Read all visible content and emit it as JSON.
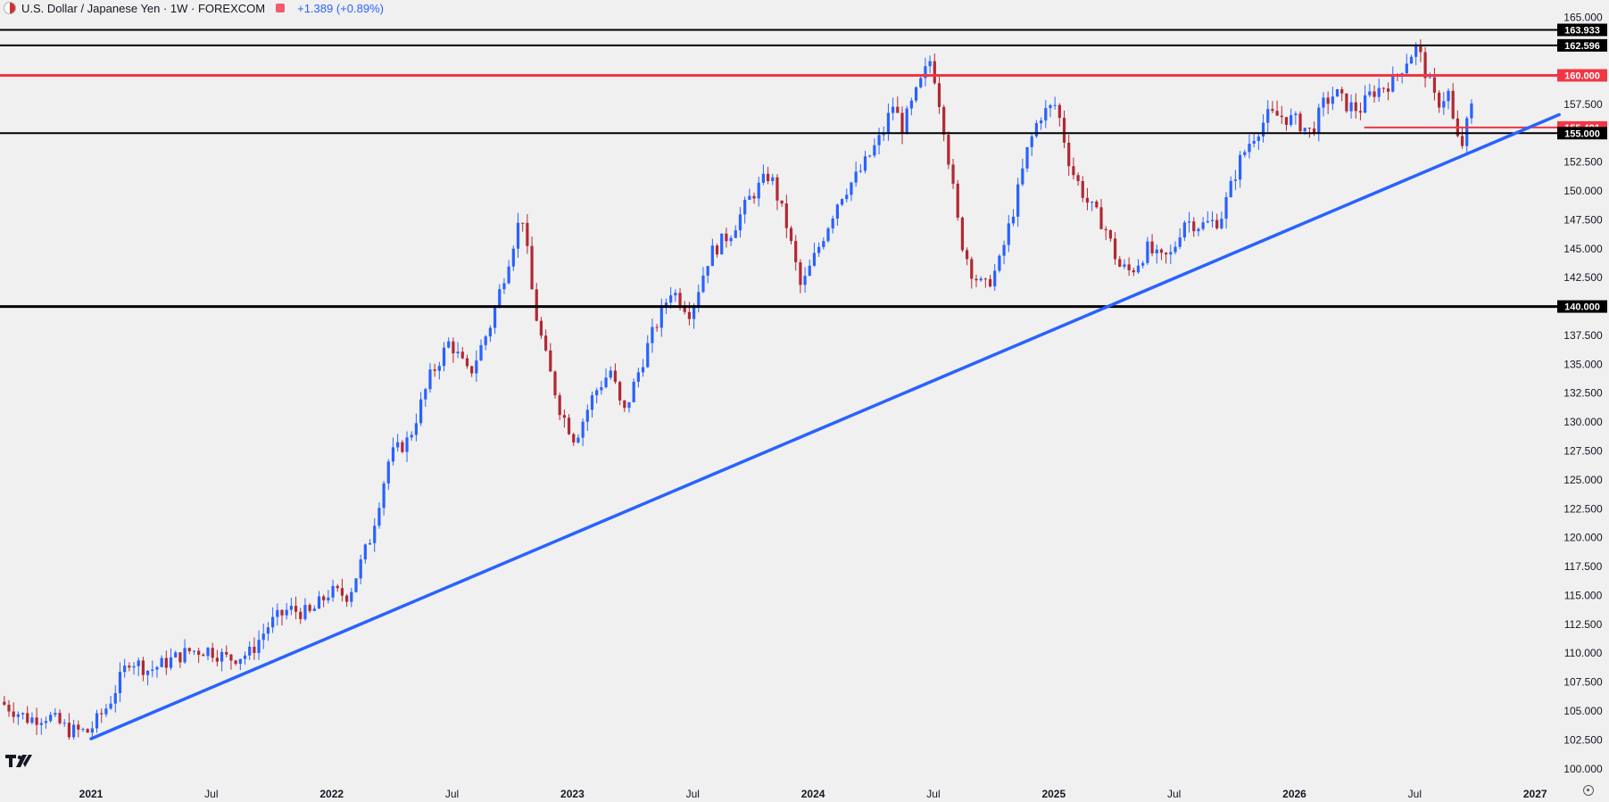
{
  "header": {
    "title": "U.S. Dollar / Japanese Yen · 1W · FOREXCOM",
    "change": "+1.389 (+0.89%)"
  },
  "chart_data": {
    "type": "candlestick",
    "title": "U.S. Dollar / Japanese Yen · 1W · FOREXCOM",
    "ylim": [
      100,
      165
    ],
    "y_ticks": [
      "100.000",
      "102.500",
      "105.000",
      "107.500",
      "110.000",
      "112.500",
      "115.000",
      "117.500",
      "120.000",
      "122.500",
      "125.000",
      "127.500",
      "130.000",
      "132.500",
      "135.000",
      "137.500",
      "140.000",
      "142.500",
      "145.000",
      "147.500",
      "150.000",
      "152.500",
      "155.000",
      "157.500",
      "160.000",
      "162.500",
      "165.000"
    ],
    "x_ticks": [
      {
        "label": "2021",
        "t": 2021.0,
        "bold": true
      },
      {
        "label": "Jul",
        "t": 2021.5,
        "bold": false
      },
      {
        "label": "2022",
        "t": 2022.0,
        "bold": true
      },
      {
        "label": "Jul",
        "t": 2022.5,
        "bold": false
      },
      {
        "label": "2023",
        "t": 2023.0,
        "bold": true
      },
      {
        "label": "Jul",
        "t": 2023.5,
        "bold": false
      },
      {
        "label": "2024",
        "t": 2024.0,
        "bold": true
      },
      {
        "label": "Jul",
        "t": 2024.5,
        "bold": false
      },
      {
        "label": "2025",
        "t": 2025.0,
        "bold": true
      },
      {
        "label": "Jul",
        "t": 2025.5,
        "bold": false
      },
      {
        "label": "2026",
        "t": 2026.0,
        "bold": true
      },
      {
        "label": "Jul",
        "t": 2026.5,
        "bold": false
      },
      {
        "label": "2027",
        "t": 2027.0,
        "bold": true
      }
    ],
    "x_range": [
      2020.63,
      2027.3
    ],
    "price_path": [
      [
        2020.63,
        105.8
      ],
      [
        2020.75,
        104.3
      ],
      [
        2020.83,
        104.6
      ],
      [
        2020.92,
        103.3
      ],
      [
        2021.0,
        103.2
      ],
      [
        2021.08,
        105.5
      ],
      [
        2021.17,
        109.5
      ],
      [
        2021.25,
        108.5
      ],
      [
        2021.33,
        109.3
      ],
      [
        2021.42,
        110.2
      ],
      [
        2021.5,
        110.3
      ],
      [
        2021.58,
        109.5
      ],
      [
        2021.67,
        110.0
      ],
      [
        2021.75,
        112.5
      ],
      [
        2021.83,
        113.8
      ],
      [
        2021.92,
        113.4
      ],
      [
        2022.0,
        115.3
      ],
      [
        2022.08,
        115.0
      ],
      [
        2022.17,
        120.0
      ],
      [
        2022.25,
        127.0
      ],
      [
        2022.33,
        128.5
      ],
      [
        2022.42,
        134.0
      ],
      [
        2022.5,
        137.0
      ],
      [
        2022.58,
        134.0
      ],
      [
        2022.67,
        138.5
      ],
      [
        2022.75,
        144.5
      ],
      [
        2022.8,
        148.2
      ],
      [
        2022.85,
        140.0
      ],
      [
        2022.9,
        135.5
      ],
      [
        2022.96,
        131.0
      ],
      [
        2023.02,
        128.5
      ],
      [
        2023.1,
        132.5
      ],
      [
        2023.17,
        134.5
      ],
      [
        2023.22,
        130.5
      ],
      [
        2023.27,
        133.5
      ],
      [
        2023.33,
        137.0
      ],
      [
        2023.42,
        141.5
      ],
      [
        2023.5,
        139.5
      ],
      [
        2023.58,
        144.5
      ],
      [
        2023.67,
        146.5
      ],
      [
        2023.75,
        149.5
      ],
      [
        2023.83,
        151.5
      ],
      [
        2023.9,
        147.0
      ],
      [
        2023.96,
        141.5
      ],
      [
        2024.05,
        146.0
      ],
      [
        2024.12,
        149.5
      ],
      [
        2024.2,
        151.5
      ],
      [
        2024.3,
        155.0
      ],
      [
        2024.34,
        157.5
      ],
      [
        2024.38,
        155.5
      ],
      [
        2024.45,
        159.0
      ],
      [
        2024.5,
        161.5
      ],
      [
        2024.55,
        156.0
      ],
      [
        2024.62,
        146.0
      ],
      [
        2024.67,
        143.0
      ],
      [
        2024.72,
        141.5
      ],
      [
        2024.78,
        143.5
      ],
      [
        2024.85,
        149.0
      ],
      [
        2024.9,
        153.5
      ],
      [
        2024.95,
        156.5
      ],
      [
        2025.02,
        157.5
      ],
      [
        2025.08,
        152.0
      ],
      [
        2025.15,
        149.0
      ],
      [
        2025.22,
        147.0
      ],
      [
        2025.28,
        143.5
      ],
      [
        2025.33,
        143.0
      ],
      [
        2025.4,
        145.0
      ],
      [
        2025.45,
        144.0
      ],
      [
        2025.5,
        144.5
      ],
      [
        2025.55,
        147.5
      ],
      [
        2025.62,
        147.0
      ],
      [
        2025.7,
        147.5
      ],
      [
        2025.78,
        152.5
      ],
      [
        2025.83,
        154.5
      ],
      [
        2025.9,
        156.5
      ],
      [
        2025.95,
        156.5
      ],
      [
        2026.02,
        156.0
      ],
      [
        2026.08,
        155.0
      ],
      [
        2026.13,
        157.5
      ],
      [
        2026.18,
        158.5
      ],
      [
        2026.22,
        157.5
      ],
      [
        2026.28,
        157.0
      ],
      [
        2026.33,
        158.5
      ],
      [
        2026.42,
        159.5
      ],
      [
        2026.48,
        161.5
      ],
      [
        2026.52,
        162.5
      ],
      [
        2026.55,
        160.5
      ],
      [
        2026.6,
        157.5
      ],
      [
        2026.65,
        158.5
      ],
      [
        2026.68,
        154.5
      ],
      [
        2026.71,
        154.0
      ],
      [
        2026.74,
        157.2
      ]
    ],
    "horizontal_levels": [
      {
        "value": 163.933,
        "label": "163.933",
        "color": "#000000"
      },
      {
        "value": 162.596,
        "label": "162.596",
        "color": "#000000"
      },
      {
        "value": 160.0,
        "label": "160.000",
        "color": "#f23645"
      },
      {
        "value": 155.491,
        "label": "155.491",
        "color": "#f23645"
      },
      {
        "value": 155.0,
        "label": "155.000",
        "color": "#000000"
      },
      {
        "value": 140.0,
        "label": "140.000",
        "color": "#000000"
      }
    ],
    "trendline": {
      "from": [
        2021.0,
        102.6
      ],
      "to": [
        2027.1,
        156.6
      ],
      "color": "#2962ff"
    },
    "colors": {
      "up": "#2962ff",
      "down": "#b22833",
      "background": "#f0f0f0"
    }
  }
}
